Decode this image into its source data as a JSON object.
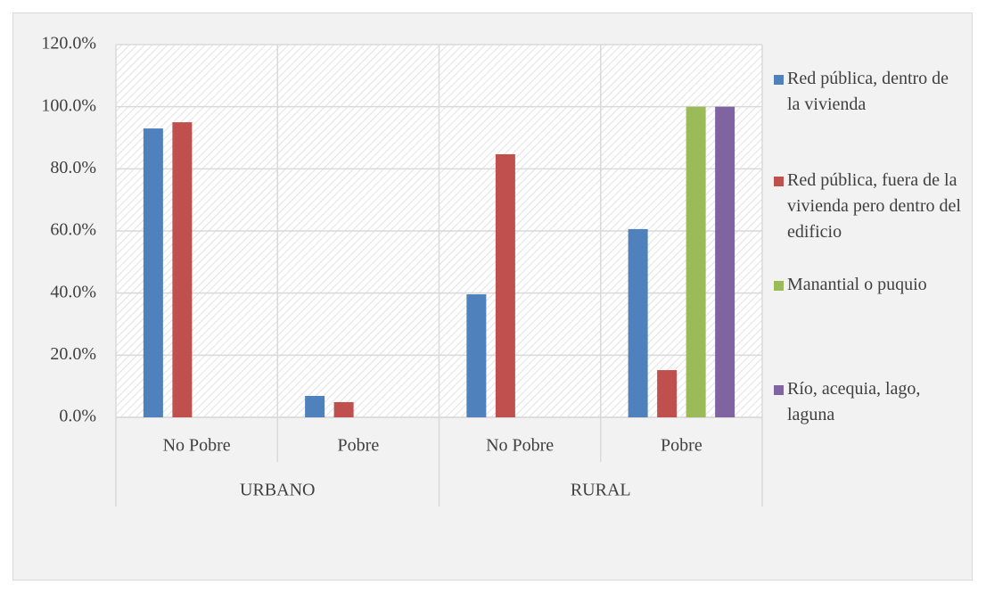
{
  "chart_data": {
    "type": "bar",
    "categories": [
      "No Pobre",
      "Pobre",
      "No Pobre",
      "Pobre"
    ],
    "groups": [
      {
        "label": "URBANO",
        "span": 2
      },
      {
        "label": "RURAL",
        "span": 2
      }
    ],
    "series": [
      {
        "name": "Red pública, dentro de la vivienda",
        "color": "#4f81bd",
        "values": [
          93.0,
          6.9,
          39.6,
          60.6
        ]
      },
      {
        "name": "Red pública, fuera de la vivienda pero dentro del edificio",
        "color": "#c0504d",
        "values": [
          95.0,
          4.9,
          84.7,
          15.2
        ]
      },
      {
        "name": "Manantial o puquio",
        "color": "#9bbb59",
        "values": [
          null,
          null,
          null,
          100.0
        ]
      },
      {
        "name": "Río, acequia, lago, laguna",
        "color": "#8064a2",
        "values": [
          null,
          null,
          null,
          100.0
        ]
      }
    ],
    "ylim": [
      0,
      120
    ],
    "yticks": [
      {
        "value": 0,
        "label": "0.0%"
      },
      {
        "value": 20,
        "label": "20.0%"
      },
      {
        "value": 40,
        "label": "40.0%"
      },
      {
        "value": 60,
        "label": "60.0%"
      },
      {
        "value": 80,
        "label": "80.0%"
      },
      {
        "value": 100,
        "label": "100.0%"
      },
      {
        "value": 120,
        "label": "120.0%"
      }
    ],
    "grid": true,
    "legend": "right"
  }
}
